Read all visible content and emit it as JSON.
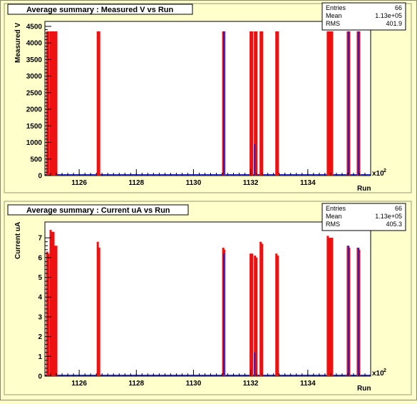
{
  "chart_data": [
    {
      "type": "bar",
      "title": "Average summary : Measured V vs Run",
      "xlabel": "Run",
      "ylabel": "Measured V",
      "x_multiplier_label": "x10",
      "x_multiplier_exp": "2",
      "xlim": [
        112.48,
        113.62
      ],
      "ylim": [
        0,
        4650
      ],
      "xticks": [
        1126,
        1128,
        1130,
        1132,
        1134
      ],
      "yticks": [
        0,
        500,
        1000,
        1500,
        2000,
        2500,
        3000,
        3500,
        4000,
        4500
      ],
      "stats": {
        "entries_label": "Entries",
        "entries": "66",
        "mean_label": "Mean",
        "mean": "1.13e+05",
        "rms_label": "RMS",
        "rms": "401.9"
      },
      "colors": {
        "red": "#ee1111",
        "blue": "#2222cc"
      },
      "series": [
        {
          "name": "red",
          "x": [
            112.488,
            112.492,
            112.5,
            112.504,
            112.51,
            112.515,
            112.52,
            112.665,
            112.67,
            113.104,
            113.108,
            113.2,
            113.205,
            113.215,
            113.22,
            113.235,
            113.24,
            113.29,
            113.295,
            113.47,
            113.475,
            113.48,
            113.485,
            113.54,
            113.545,
            113.575,
            113.58
          ],
          "values": [
            4350,
            4350,
            4350,
            4350,
            4350,
            4350,
            4350,
            4350,
            4350,
            4350,
            4350,
            4350,
            4350,
            4350,
            4350,
            4350,
            4350,
            4350,
            4350,
            4350,
            4350,
            4350,
            4350,
            4350,
            4350,
            4350,
            4350
          ]
        },
        {
          "name": "blue",
          "x": [
            113.106,
            113.214,
            113.543,
            113.578
          ],
          "values": [
            4350,
            950,
            4350,
            4350
          ]
        }
      ]
    },
    {
      "type": "bar",
      "title": "Average summary : Current uA vs Run",
      "xlabel": "Run",
      "ylabel": "Current uA",
      "x_multiplier_label": "x10",
      "x_multiplier_exp": "2",
      "xlim": [
        112.48,
        113.62
      ],
      "ylim": [
        0,
        7.8
      ],
      "xticks": [
        1126,
        1128,
        1130,
        1132,
        1134
      ],
      "yticks": [
        0,
        1,
        2,
        3,
        4,
        5,
        6,
        7
      ],
      "stats": {
        "entries_label": "Entries",
        "entries": "66",
        "mean_label": "Mean",
        "mean": "1.13e+05",
        "rms_label": "RMS",
        "rms": "405.3"
      },
      "colors": {
        "red": "#ee1111",
        "blue": "#2222cc"
      },
      "series": [
        {
          "name": "red",
          "x": [
            112.488,
            112.492,
            112.5,
            112.504,
            112.51,
            112.515,
            112.52,
            112.665,
            112.67,
            113.104,
            113.108,
            113.2,
            113.205,
            113.215,
            113.22,
            113.235,
            113.24,
            113.29,
            113.295,
            113.47,
            113.475,
            113.48,
            113.485,
            113.54,
            113.545,
            113.575,
            113.58
          ],
          "values": [
            6.3,
            6.2,
            7.4,
            7.3,
            7.3,
            6.6,
            6.6,
            6.8,
            6.5,
            6.5,
            6.4,
            6.2,
            6.2,
            6.1,
            6.0,
            6.8,
            6.7,
            6.2,
            6.1,
            7.1,
            7.0,
            7.0,
            7.0,
            6.6,
            6.5,
            6.5,
            6.4
          ]
        },
        {
          "name": "blue",
          "x": [
            113.106,
            113.214,
            113.543,
            113.578
          ],
          "values": [
            6.2,
            1.2,
            6.6,
            6.5
          ]
        }
      ]
    }
  ]
}
